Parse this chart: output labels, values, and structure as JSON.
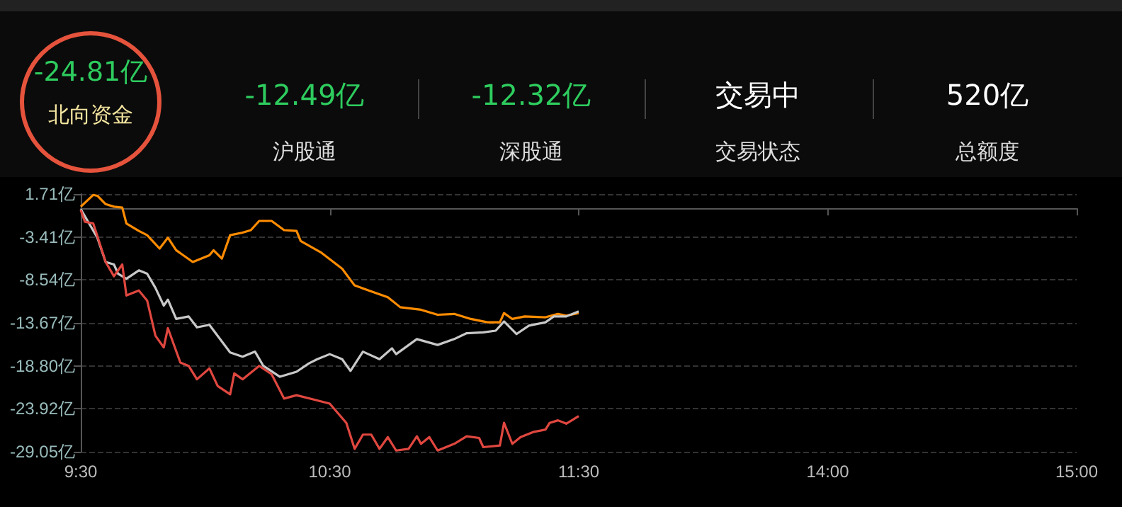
{
  "chart_data": [
    {
      "type": "other",
      "annotations": [
        "-24.81亿",
        "北向资金",
        "-12.49亿",
        "沪股通",
        "-12.32亿",
        "深股通",
        "交易中",
        "交易状态",
        "520亿",
        "总额度"
      ]
    },
    {
      "type": "line",
      "marker": "none",
      "grid": "y",
      "categories": [
        "9:30",
        null,
        null,
        null,
        null,
        null,
        null,
        null,
        null,
        null,
        null,
        null,
        null,
        null,
        null,
        null,
        null,
        null,
        null,
        null,
        null,
        null,
        null,
        null,
        null,
        null,
        null,
        null,
        null,
        null,
        null,
        null,
        null,
        null,
        null,
        null,
        null,
        null,
        null,
        null,
        null,
        null,
        null,
        null,
        null,
        null,
        null,
        null,
        null,
        null,
        null,
        null,
        null,
        null,
        null,
        null,
        null,
        null,
        null,
        null,
        "10:30",
        null,
        null,
        null,
        null,
        null,
        null,
        null,
        null,
        null,
        null,
        null,
        null,
        null,
        null,
        null,
        null,
        null,
        null,
        null,
        null,
        null,
        null,
        null,
        null,
        null,
        null,
        null,
        null,
        null,
        null,
        null,
        null,
        null,
        null,
        null,
        null,
        null,
        null,
        null,
        null,
        null,
        null,
        null,
        null,
        null,
        null,
        null,
        null,
        null,
        null,
        null,
        null,
        null,
        null,
        null,
        null,
        null,
        null,
        null,
        "11:30",
        null,
        null,
        null,
        null,
        null,
        null,
        null,
        null,
        null,
        null,
        null,
        null,
        null,
        null,
        null,
        null,
        null,
        null,
        null,
        null,
        null,
        null,
        null,
        null,
        null,
        null,
        null,
        null,
        null,
        null,
        null,
        null,
        null,
        null,
        null,
        null,
        null,
        null,
        null,
        null,
        null,
        null,
        null,
        null,
        null,
        null,
        null,
        null,
        null,
        null,
        null,
        null,
        null,
        null,
        null,
        null,
        null,
        null,
        null,
        "14:00",
        null,
        null,
        null,
        null,
        null,
        null,
        null,
        null,
        null,
        null,
        null,
        null,
        null,
        null,
        null,
        null,
        null,
        null,
        null,
        null,
        null,
        null,
        null,
        null,
        null,
        null,
        null,
        null,
        null,
        null,
        null,
        null,
        null,
        null,
        null,
        null,
        null,
        null,
        null,
        null,
        null,
        null,
        null,
        null,
        null,
        null,
        null,
        null,
        null,
        null,
        null,
        null,
        null,
        null,
        null,
        null,
        null,
        null,
        null,
        "15:00"
      ],
      "ylim": [
        -29.05,
        1.71
      ],
      "yticks": [
        {
          "value": 1.71,
          "label": "1.71亿"
        },
        {
          "value": -3.41,
          "label": "-3.41亿"
        },
        {
          "value": -8.54,
          "label": "-8.54亿"
        },
        {
          "value": -13.67,
          "label": "-13.67亿"
        },
        {
          "value": -18.8,
          "label": "-18.80亿"
        },
        {
          "value": -23.92,
          "label": "-23.92亿"
        },
        {
          "value": -29.05,
          "label": "-29.05亿"
        }
      ],
      "series": [
        {
          "color": "#ff8c00",
          "values": [
            0.2,
            null,
            null,
            1.6,
            1.5,
            null,
            0.5,
            null,
            0.2,
            null,
            0.1,
            -1.8,
            null,
            null,
            -2.7,
            null,
            -3.2,
            null,
            null,
            -4.8,
            null,
            -3.5,
            null,
            -5.0,
            null,
            null,
            null,
            -6.4,
            null,
            null,
            null,
            -5.6,
            -5.0,
            null,
            -6.0,
            null,
            -3.2,
            null,
            null,
            -2.9,
            null,
            -2.6,
            null,
            -1.5,
            null,
            null,
            -1.5,
            null,
            null,
            -2.6,
            null,
            null,
            -2.7,
            -3.9,
            null,
            null,
            null,
            null,
            -5.3,
            null,
            null,
            null,
            null,
            -7.2,
            null,
            null,
            -9.2,
            null,
            null,
            null,
            -9.9,
            null,
            null,
            null,
            -10.6,
            null,
            null,
            -11.8,
            null,
            null,
            null,
            null,
            -12.1,
            null,
            null,
            null,
            -12.7,
            null,
            null,
            null,
            -12.6,
            null,
            null,
            null,
            -13.2,
            null,
            null,
            null,
            -13.6,
            null,
            null,
            -13.6,
            -12.5,
            null,
            -13.2,
            null,
            null,
            -12.9,
            null,
            null,
            null,
            null,
            -13.0,
            null,
            null,
            -12.6,
            null,
            -12.8,
            null,
            null,
            -12.5,
            null,
            null,
            null,
            null,
            null,
            null,
            null,
            null,
            null,
            null,
            null,
            null,
            null,
            null,
            null,
            null,
            null,
            null,
            null,
            null,
            null,
            null,
            null,
            null,
            null,
            null,
            null,
            null,
            null,
            null,
            null,
            null,
            null,
            null,
            null,
            null,
            null,
            null,
            null,
            null,
            null,
            null,
            null,
            null,
            null,
            null,
            null,
            null,
            null,
            null,
            null,
            null,
            null,
            null,
            null,
            null,
            null,
            null,
            null,
            null,
            null,
            null,
            null,
            null,
            null,
            null,
            null,
            null,
            null,
            null,
            null,
            null,
            null,
            null,
            null,
            null,
            null,
            null,
            null,
            null,
            null,
            null,
            null,
            null,
            null,
            null,
            null,
            null,
            null,
            null,
            null,
            null,
            null,
            null,
            null,
            null,
            null,
            null,
            null,
            null,
            null,
            null,
            null,
            null,
            null,
            null,
            null,
            null,
            null,
            null,
            null,
            null,
            null,
            null,
            null,
            null,
            null,
            null,
            null,
            null
          ]
        },
        {
          "color": "#c8c8c8",
          "values": [
            -0.1,
            null,
            -1.8,
            null,
            -3.5,
            null,
            -6.4,
            null,
            -6.7,
            -7.8,
            null,
            -8.4,
            null,
            null,
            -7.4,
            null,
            -7.8,
            null,
            -9.5,
            null,
            -11.6,
            -10.9,
            null,
            -13.2,
            null,
            null,
            -12.9,
            null,
            -14.2,
            null,
            null,
            -13.9,
            null,
            null,
            null,
            null,
            -17.2,
            null,
            null,
            -17.7,
            null,
            null,
            -17.1,
            null,
            -18.8,
            null,
            null,
            null,
            -20.1,
            null,
            null,
            null,
            -19.5,
            null,
            null,
            -18.5,
            null,
            -18.0,
            null,
            null,
            -17.4,
            null,
            null,
            -18.0,
            null,
            -19.4,
            null,
            null,
            -17.1,
            null,
            null,
            null,
            -18.0,
            null,
            null,
            -16.7,
            -17.4,
            null,
            null,
            null,
            null,
            -15.6,
            null,
            null,
            null,
            null,
            -16.3,
            null,
            null,
            null,
            -15.6,
            null,
            null,
            -14.9,
            null,
            null,
            null,
            -14.8,
            null,
            null,
            -14.6,
            null,
            -13.5,
            null,
            null,
            -15.0,
            null,
            null,
            -14.0,
            null,
            null,
            null,
            -13.6,
            null,
            -12.9,
            null,
            null,
            -12.9,
            null,
            null,
            -12.3,
            null,
            null,
            null,
            null,
            null,
            null,
            null,
            null,
            null,
            null,
            null,
            null,
            null,
            null,
            null,
            null,
            null,
            null,
            null,
            null,
            null,
            null,
            null,
            null,
            null,
            null,
            null,
            null,
            null,
            null,
            null,
            null,
            null,
            null,
            null,
            null,
            null,
            null,
            null,
            null,
            null,
            null,
            null,
            null,
            null,
            null,
            null,
            null,
            null,
            null,
            null,
            null,
            null,
            null,
            null,
            null,
            null,
            null,
            null,
            null,
            null,
            null,
            null,
            null,
            null,
            null,
            null,
            null,
            null,
            null,
            null,
            null,
            null,
            null,
            null,
            null,
            null,
            null,
            null,
            null,
            null,
            null,
            null,
            null,
            null,
            null,
            null,
            null,
            null,
            null,
            null,
            null,
            null,
            null,
            null,
            null,
            null,
            null,
            null,
            null,
            null,
            null,
            null,
            null,
            null,
            null,
            null,
            null,
            null,
            null,
            null,
            null,
            null,
            null,
            null,
            null,
            null,
            null,
            null,
            null
          ]
        },
        {
          "color": "#e0473f",
          "values": [
            -0.2,
            -1.6,
            null,
            -1.8,
            -3.3,
            null,
            -6.4,
            null,
            -8.1,
            null,
            -6.7,
            -10.4,
            null,
            null,
            -9.8,
            null,
            -11.0,
            null,
            -15.2,
            null,
            -16.6,
            -14.3,
            null,
            null,
            -18.4,
            null,
            -18.8,
            null,
            -20.4,
            null,
            null,
            -19.1,
            null,
            -21.2,
            null,
            null,
            -22.2,
            -19.7,
            null,
            -20.4,
            null,
            null,
            null,
            -18.8,
            null,
            null,
            -19.8,
            null,
            null,
            -22.7,
            null,
            null,
            -22.3,
            null,
            null,
            null,
            -22.8,
            null,
            null,
            null,
            -23.3,
            null,
            null,
            null,
            -25.6,
            null,
            -28.7,
            null,
            -27.0,
            null,
            -27.0,
            null,
            -28.7,
            null,
            -27.3,
            null,
            -28.9,
            null,
            null,
            -28.7,
            null,
            -27.2,
            -28.1,
            null,
            -27.3,
            null,
            -28.9,
            null,
            null,
            null,
            -28.1,
            null,
            null,
            -27.2,
            null,
            null,
            -27.4,
            -28.5,
            null,
            null,
            null,
            -28.3,
            -25.6,
            null,
            -28.1,
            null,
            -27.3,
            null,
            null,
            -26.7,
            null,
            null,
            -26.4,
            -25.6,
            null,
            -25.3,
            null,
            -25.7,
            null,
            null,
            -24.8,
            null,
            null,
            null,
            null,
            null,
            null,
            null,
            null,
            null,
            null,
            null,
            null,
            null,
            null,
            null,
            null,
            null,
            null,
            null,
            null,
            null,
            null,
            null,
            null,
            null,
            null,
            null,
            null,
            null,
            null,
            null,
            null,
            null,
            null,
            null,
            null,
            null,
            null,
            null,
            null,
            null,
            null,
            null,
            null,
            null,
            null,
            null,
            null,
            null,
            null,
            null,
            null,
            null,
            null,
            null,
            null,
            null,
            null,
            null,
            null,
            null,
            null,
            null,
            null,
            null,
            null,
            null,
            null,
            null,
            null,
            null,
            null,
            null,
            null,
            null,
            null,
            null,
            null,
            null,
            null,
            null,
            null,
            null,
            null,
            null,
            null,
            null,
            null,
            null,
            null,
            null,
            null,
            null,
            null,
            null,
            null,
            null,
            null,
            null,
            null,
            null,
            null,
            null,
            null,
            null,
            null,
            null,
            null,
            null,
            null,
            null,
            null,
            null,
            null,
            null,
            null,
            null,
            null,
            null,
            null
          ]
        }
      ]
    }
  ]
}
